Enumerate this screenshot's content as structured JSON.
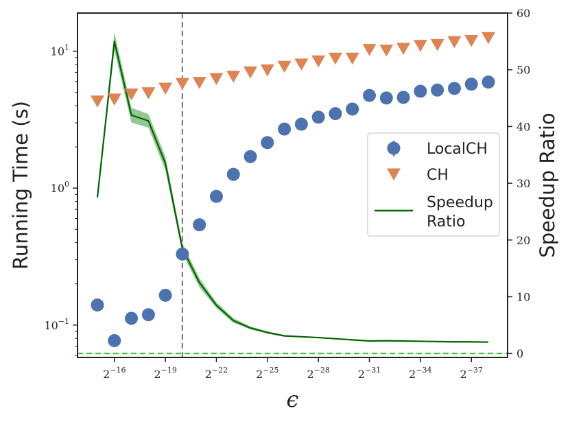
{
  "chart_data": {
    "type": "scatter",
    "xlabel": "ϵ",
    "ylabel_left": "Running Time (s)",
    "ylabel_right": "Speedup Ratio",
    "x_exponents": [
      -15,
      -16,
      -17,
      -18,
      -19,
      -20,
      -21,
      -22,
      -23,
      -24,
      -25,
      -26,
      -27,
      -28,
      -29,
      -30,
      -31,
      -32,
      -33,
      -34,
      -35,
      -36,
      -37,
      -38
    ],
    "x_tick_labels": [
      {
        "base": "2",
        "exp": "−16",
        "x_exp": -16
      },
      {
        "base": "2",
        "exp": "−19",
        "x_exp": -19
      },
      {
        "base": "2",
        "exp": "−22",
        "x_exp": -22
      },
      {
        "base": "2",
        "exp": "−25",
        "x_exp": -25
      },
      {
        "base": "2",
        "exp": "−28",
        "x_exp": -28
      },
      {
        "base": "2",
        "exp": "−31",
        "x_exp": -31
      },
      {
        "base": "2",
        "exp": "−34",
        "x_exp": -34
      },
      {
        "base": "2",
        "exp": "−37",
        "x_exp": -37
      }
    ],
    "left_axis": {
      "scale": "log",
      "ylim": [
        0.058,
        19.0
      ],
      "ticks": [
        {
          "value": 0.1,
          "base": "10",
          "exp": "−1"
        },
        {
          "value": 1,
          "base": "10",
          "exp": "0"
        },
        {
          "value": 10,
          "base": "10",
          "exp": "1"
        }
      ]
    },
    "right_axis": {
      "scale": "linear",
      "ylim": [
        -0.7,
        60
      ],
      "ticks": [
        0,
        10,
        20,
        30,
        40,
        50,
        60
      ]
    },
    "series": [
      {
        "name": "LocalCH",
        "axis": "left",
        "marker": "circle",
        "color": "#4c72b0",
        "values": [
          0.14,
          0.077,
          0.112,
          0.119,
          0.165,
          0.33,
          0.54,
          0.87,
          1.26,
          1.7,
          2.15,
          2.7,
          2.93,
          3.3,
          3.5,
          3.78,
          4.75,
          4.55,
          4.6,
          5.1,
          5.2,
          5.35,
          5.75,
          5.95
        ]
      },
      {
        "name": "CH",
        "axis": "left",
        "marker": "triangle-down",
        "color": "#dd8452",
        "values": [
          4.35,
          4.5,
          4.9,
          5.0,
          5.4,
          5.85,
          5.95,
          6.35,
          6.6,
          7.1,
          7.35,
          7.8,
          8.1,
          8.55,
          8.95,
          8.95,
          10.35,
          10.25,
          10.55,
          11.1,
          11.25,
          11.8,
          12.05,
          12.65
        ]
      },
      {
        "name": "Speedup Ratio",
        "axis": "right",
        "type": "line",
        "color": "#006400",
        "band_color": "#3a9a3a",
        "values": [
          27.5,
          55.0,
          42.0,
          41.0,
          33.5,
          18.5,
          12.5,
          8.5,
          5.8,
          4.5,
          3.7,
          3.1,
          2.95,
          2.8,
          2.6,
          2.4,
          2.2,
          2.25,
          2.2,
          2.15,
          2.1,
          2.05,
          2.05,
          2.0
        ],
        "band_halfwidth": [
          0.6,
          1.6,
          1.3,
          1.2,
          1.2,
          0.9,
          0.8,
          0.5,
          0.4,
          0.25,
          0.2,
          0.15,
          0.12,
          0.1,
          0.1,
          0.1,
          0.1,
          0.1,
          0.1,
          0.1,
          0.1,
          0.1,
          0.1,
          0.1
        ]
      }
    ],
    "reference_lines": [
      {
        "orientation": "vertical",
        "x_exp": -20,
        "style": "dashed",
        "color": "#808080"
      },
      {
        "orientation": "horizontal",
        "axis": "right",
        "value": 0,
        "style": "dashed",
        "color": "#33cc33"
      }
    ],
    "legend": {
      "position": "center-right",
      "entries": [
        {
          "label": "LocalCH",
          "series": "LocalCH"
        },
        {
          "label": "CH",
          "series": "CH"
        },
        {
          "label_line1": "Speedup",
          "label_line2": "Ratio",
          "series": "Speedup Ratio"
        }
      ]
    }
  }
}
